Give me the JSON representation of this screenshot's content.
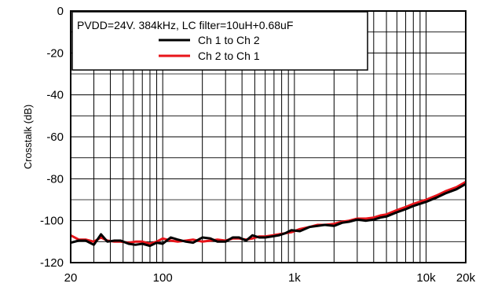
{
  "chart_data": {
    "type": "line",
    "title": "",
    "legend_header": "PVDD=24V. 384kHz, LC filter=10uH+0.68uF",
    "legend_placement": "top-left",
    "xlabel": "",
    "ylabel": "Crosstalk (dB)",
    "x_scale": "log",
    "xlim": [
      20,
      20000
    ],
    "ylim": [
      -120,
      0
    ],
    "grid": true,
    "x_ticks": [
      {
        "value": 20,
        "label": "20"
      },
      {
        "value": 100,
        "label": "100"
      },
      {
        "value": 1000,
        "label": "1k"
      },
      {
        "value": 10000,
        "label": "10k"
      },
      {
        "value": 20000,
        "label": "20k"
      }
    ],
    "y_ticks": [
      {
        "value": 0,
        "label": "0"
      },
      {
        "value": -20,
        "label": "-20"
      },
      {
        "value": -40,
        "label": "-40"
      },
      {
        "value": -60,
        "label": "-60"
      },
      {
        "value": -80,
        "label": "-80"
      },
      {
        "value": -100,
        "label": "-100"
      },
      {
        "value": -120,
        "label": "-120"
      }
    ],
    "series": [
      {
        "name": "Ch 1 to Ch 2",
        "color": "#000000",
        "points": [
          [
            20,
            -110.5
          ],
          [
            23,
            -109.5
          ],
          [
            26,
            -109.5
          ],
          [
            30,
            -111.5
          ],
          [
            34,
            -106.5
          ],
          [
            38,
            -110
          ],
          [
            43,
            -109.5
          ],
          [
            48,
            -109.5
          ],
          [
            55,
            -111
          ],
          [
            62,
            -111.5
          ],
          [
            70,
            -111
          ],
          [
            80,
            -112
          ],
          [
            90,
            -110.5
          ],
          [
            100,
            -111
          ],
          [
            115,
            -108
          ],
          [
            130,
            -109
          ],
          [
            150,
            -110
          ],
          [
            170,
            -110.5
          ],
          [
            200,
            -108
          ],
          [
            230,
            -108.5
          ],
          [
            260,
            -110
          ],
          [
            300,
            -110
          ],
          [
            340,
            -108
          ],
          [
            380,
            -108
          ],
          [
            430,
            -109.5
          ],
          [
            480,
            -107
          ],
          [
            540,
            -108
          ],
          [
            600,
            -108
          ],
          [
            680,
            -107.5
          ],
          [
            760,
            -107
          ],
          [
            850,
            -106
          ],
          [
            950,
            -104.5
          ],
          [
            1100,
            -105
          ],
          [
            1300,
            -103
          ],
          [
            1500,
            -102.5
          ],
          [
            1700,
            -102
          ],
          [
            2000,
            -102.5
          ],
          [
            2300,
            -101
          ],
          [
            2600,
            -100.5
          ],
          [
            3000,
            -99.5
          ],
          [
            3500,
            -100
          ],
          [
            4000,
            -99.5
          ],
          [
            4500,
            -98.5
          ],
          [
            5000,
            -98
          ],
          [
            6000,
            -96
          ],
          [
            7000,
            -94.5
          ],
          [
            8000,
            -93
          ],
          [
            10000,
            -91
          ],
          [
            12000,
            -89
          ],
          [
            14000,
            -87
          ],
          [
            17000,
            -85
          ],
          [
            20000,
            -82.5
          ]
        ]
      },
      {
        "name": "Ch 2 to Ch 1",
        "color": "#e8141a",
        "points": [
          [
            20,
            -107
          ],
          [
            23,
            -109
          ],
          [
            26,
            -109
          ],
          [
            30,
            -110
          ],
          [
            34,
            -108
          ],
          [
            38,
            -109.5
          ],
          [
            43,
            -110
          ],
          [
            48,
            -110
          ],
          [
            55,
            -110.5
          ],
          [
            62,
            -110
          ],
          [
            70,
            -110
          ],
          [
            80,
            -111
          ],
          [
            90,
            -110
          ],
          [
            100,
            -108.5
          ],
          [
            115,
            -109.5
          ],
          [
            130,
            -110
          ],
          [
            150,
            -109.5
          ],
          [
            170,
            -109
          ],
          [
            200,
            -110
          ],
          [
            230,
            -109.5
          ],
          [
            260,
            -109
          ],
          [
            300,
            -109.5
          ],
          [
            340,
            -108.5
          ],
          [
            380,
            -108.5
          ],
          [
            430,
            -109
          ],
          [
            480,
            -108.5
          ],
          [
            540,
            -107.5
          ],
          [
            600,
            -107.5
          ],
          [
            680,
            -107
          ],
          [
            760,
            -106.5
          ],
          [
            850,
            -106
          ],
          [
            950,
            -105.5
          ],
          [
            1100,
            -104
          ],
          [
            1300,
            -103
          ],
          [
            1500,
            -102
          ],
          [
            1700,
            -102
          ],
          [
            2000,
            -101.5
          ],
          [
            2300,
            -100.5
          ],
          [
            2600,
            -100
          ],
          [
            3000,
            -99
          ],
          [
            3500,
            -99
          ],
          [
            4000,
            -98.5
          ],
          [
            4500,
            -97.5
          ],
          [
            5000,
            -97
          ],
          [
            6000,
            -95
          ],
          [
            7000,
            -93.5
          ],
          [
            8000,
            -92
          ],
          [
            10000,
            -90
          ],
          [
            12000,
            -88
          ],
          [
            14000,
            -86
          ],
          [
            17000,
            -84
          ],
          [
            20000,
            -81.5
          ]
        ]
      }
    ]
  }
}
